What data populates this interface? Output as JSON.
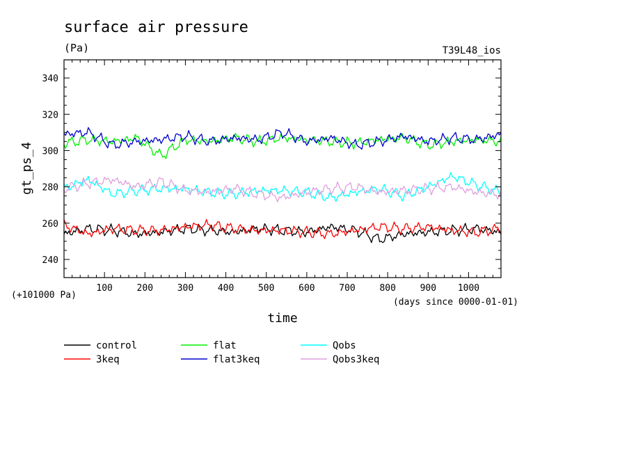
{
  "chart_data": {
    "type": "line",
    "title": "surface air pressure",
    "units": "(Pa)",
    "run_label": "T39L48_ios",
    "xlabel": "time",
    "x_units_note": "(days since 0000-01-01)",
    "ylabel": "gt_ps_4",
    "y_offset_note": "(+101000 Pa)",
    "xlim": [
      0,
      1080
    ],
    "ylim": [
      230,
      350
    ],
    "x_ticks": [
      100,
      200,
      300,
      400,
      500,
      600,
      700,
      800,
      900,
      1000
    ],
    "y_ticks": [
      240,
      260,
      280,
      300,
      320,
      340
    ],
    "grid": false,
    "legend_position": "below plot",
    "x": [
      0,
      60,
      120,
      180,
      240,
      300,
      360,
      420,
      480,
      540,
      600,
      660,
      720,
      780,
      840,
      900,
      960,
      1020,
      1080
    ],
    "series": [
      {
        "name": "control",
        "color": "#000000",
        "values": [
          254,
          257,
          256,
          254,
          255,
          257,
          256,
          255,
          257,
          256,
          255,
          258,
          256,
          251,
          254,
          255,
          256,
          257,
          255
        ]
      },
      {
        "name": "3keq",
        "color": "#ff0000",
        "values": [
          259,
          254,
          257,
          256,
          256,
          258,
          259,
          257,
          256,
          256,
          255,
          254,
          256,
          258,
          257,
          258,
          256,
          255,
          257
        ]
      },
      {
        "name": "flat",
        "color": "#00ee00",
        "values": [
          304,
          306,
          305,
          307,
          297,
          306,
          305,
          307,
          305,
          307,
          306,
          305,
          304,
          306,
          307,
          303,
          305,
          306,
          305
        ]
      },
      {
        "name": "flat3keq",
        "color": "#0000cc",
        "values": [
          309,
          310,
          303,
          305,
          306,
          308,
          305,
          307,
          306,
          310,
          305,
          307,
          303,
          305,
          308,
          305,
          307,
          306,
          309
        ]
      },
      {
        "name": "Qobs",
        "color": "#00ffff",
        "values": [
          279,
          284,
          276,
          278,
          279,
          279,
          277,
          276,
          278,
          278,
          277,
          274,
          277,
          279,
          275,
          280,
          286,
          281,
          277
        ]
      },
      {
        "name": "Qobs3keq",
        "color": "#dda0dd",
        "values": [
          279,
          282,
          284,
          280,
          283,
          278,
          277,
          279,
          276,
          274,
          277,
          279,
          280,
          277,
          278,
          279,
          280,
          277,
          276
        ]
      }
    ]
  }
}
